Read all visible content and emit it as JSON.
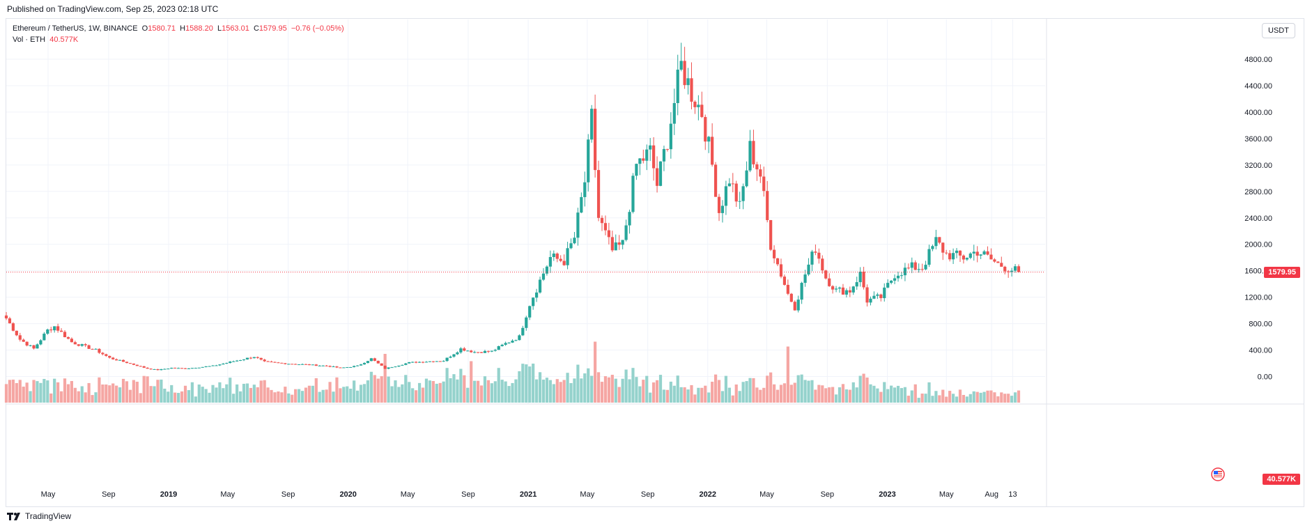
{
  "header": {
    "published": "Published on TradingView.com, Sep 25, 2023 02:18 UTC"
  },
  "legend": {
    "symbol": "Ethereum / TetherUS, 1W, BINANCE",
    "o_label": "O",
    "o_value": "1580.71",
    "h_label": "H",
    "h_value": "1588.20",
    "l_label": "L",
    "l_value": "1563.01",
    "c_label": "C",
    "c_value": "1579.95",
    "change": "−0.76 (−0.05%)",
    "vol_label": "Vol · ETH",
    "vol_value": "40.577K"
  },
  "currency": "USDT",
  "price_tag": "1579.95",
  "volume_tag": "40.577K",
  "footer": {
    "brand": "TradingView"
  },
  "colors": {
    "up": "#26a69a",
    "down": "#ef5350",
    "up_vol": "#94d2cc",
    "down_vol": "#f5a6a3",
    "grid": "#f0f3fa",
    "last_price": "#f23645"
  },
  "chart_data": {
    "type": "candlestick",
    "interval": "1W",
    "y_ticks": [
      "400.00",
      "800.00",
      "1200.00",
      "1600.00",
      "2000.00",
      "2400.00",
      "2800.00",
      "3200.00",
      "3600.00",
      "4000.00",
      "4400.00",
      "4800.00"
    ],
    "y_tick_values": [
      400,
      800,
      1200,
      1600,
      2000,
      2400,
      2800,
      3200,
      3600,
      4000,
      4400,
      4800
    ],
    "volume_zero_label": "0.00",
    "x_ticks": [
      "May",
      "Sep",
      "2019",
      "May",
      "Sep",
      "2020",
      "May",
      "Sep",
      "2021",
      "May",
      "Sep",
      "2022",
      "May",
      "Sep",
      "2023",
      "May",
      "Aug",
      "13"
    ],
    "x_tick_dates": [
      "2018-05-01",
      "2018-09-01",
      "2019-01-01",
      "2019-05-01",
      "2019-09-01",
      "2020-01-01",
      "2020-05-01",
      "2020-09-01",
      "2021-01-01",
      "2021-05-01",
      "2021-09-01",
      "2022-01-01",
      "2022-05-01",
      "2022-09-01",
      "2023-01-01",
      "2023-05-01",
      "2023-08-01",
      "2023-09-13"
    ],
    "x_range": [
      "2018-02-05",
      "2023-09-25"
    ],
    "y_range": [
      -80,
      4980
    ],
    "last_price": 1579.95,
    "close_anchors": [
      [
        "2018-02-05",
        880
      ],
      [
        "2018-03-05",
        560
      ],
      [
        "2018-04-02",
        420
      ],
      [
        "2018-04-30",
        700
      ],
      [
        "2018-05-14",
        760
      ],
      [
        "2018-06-18",
        520
      ],
      [
        "2018-08-06",
        400
      ],
      [
        "2018-09-03",
        280
      ],
      [
        "2018-10-08",
        210
      ],
      [
        "2018-11-19",
        120
      ],
      [
        "2018-12-10",
        100
      ],
      [
        "2019-01-07",
        130
      ],
      [
        "2019-02-04",
        120
      ],
      [
        "2019-04-01",
        160
      ],
      [
        "2019-05-13",
        230
      ],
      [
        "2019-06-24",
        300
      ],
      [
        "2019-07-15",
        220
      ],
      [
        "2019-08-19",
        200
      ],
      [
        "2019-10-07",
        180
      ],
      [
        "2019-11-18",
        160
      ],
      [
        "2019-12-16",
        130
      ],
      [
        "2020-01-20",
        160
      ],
      [
        "2020-02-17",
        270
      ],
      [
        "2020-03-16",
        120
      ],
      [
        "2020-05-04",
        210
      ],
      [
        "2020-06-15",
        230
      ],
      [
        "2020-07-13",
        240
      ],
      [
        "2020-08-17",
        420
      ],
      [
        "2020-09-14",
        370
      ],
      [
        "2020-10-19",
        380
      ],
      [
        "2020-11-16",
        500
      ],
      [
        "2020-12-14",
        600
      ],
      [
        "2021-01-04",
        1100
      ],
      [
        "2021-02-15",
        1800
      ],
      [
        "2021-03-15",
        1750
      ],
      [
        "2021-04-05",
        2100
      ],
      [
        "2021-04-26",
        2950
      ],
      [
        "2021-05-10",
        3900
      ],
      [
        "2021-05-24",
        2400
      ],
      [
        "2021-06-21",
        1900
      ],
      [
        "2021-07-12",
        2000
      ],
      [
        "2021-08-09",
        3200
      ],
      [
        "2021-09-06",
        3400
      ],
      [
        "2021-09-20",
        2900
      ],
      [
        "2021-10-11",
        3600
      ],
      [
        "2021-11-08",
        4700
      ],
      [
        "2021-11-29",
        4300
      ],
      [
        "2021-12-20",
        4000
      ],
      [
        "2022-01-10",
        3200
      ],
      [
        "2022-01-24",
        2500
      ],
      [
        "2022-02-14",
        3000
      ],
      [
        "2022-03-07",
        2550
      ],
      [
        "2022-03-28",
        3450
      ],
      [
        "2022-04-18",
        3050
      ],
      [
        "2022-05-09",
        2000
      ],
      [
        "2022-06-13",
        1250
      ],
      [
        "2022-06-27",
        1050
      ],
      [
        "2022-07-18",
        1550
      ],
      [
        "2022-08-08",
        1950
      ],
      [
        "2022-08-29",
        1500
      ],
      [
        "2022-09-19",
        1300
      ],
      [
        "2022-10-17",
        1300
      ],
      [
        "2022-11-07",
        1550
      ],
      [
        "2022-11-21",
        1150
      ],
      [
        "2022-12-19",
        1200
      ],
      [
        "2023-01-16",
        1550
      ],
      [
        "2023-02-20",
        1650
      ],
      [
        "2023-03-13",
        1650
      ],
      [
        "2023-04-10",
        2050
      ],
      [
        "2023-05-01",
        1850
      ],
      [
        "2023-06-05",
        1800
      ],
      [
        "2023-07-03",
        1900
      ],
      [
        "2023-08-14",
        1700
      ],
      [
        "2023-09-25",
        1580
      ]
    ],
    "volume_axis_label": "Vol · ETH",
    "volume_spikes": [
      [
        "2020-03-16",
        1.0
      ],
      [
        "2020-09-07",
        0.85
      ],
      [
        "2021-01-11",
        0.8
      ],
      [
        "2021-05-17",
        1.25
      ],
      [
        "2021-05-10",
        0.55
      ],
      [
        "2022-06-13",
        1.15
      ],
      [
        "2022-11-07",
        0.55
      ]
    ]
  }
}
